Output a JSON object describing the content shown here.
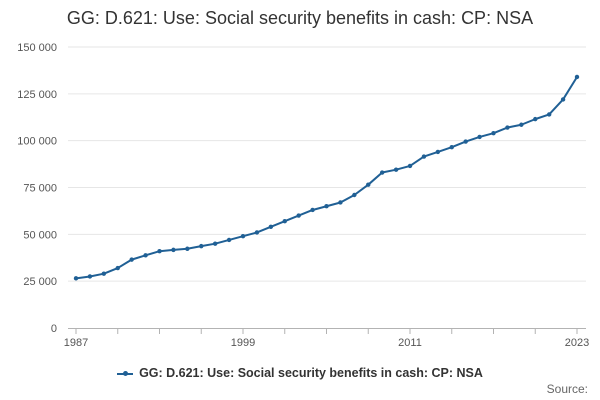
{
  "chart_data": {
    "type": "line",
    "title": "GG: D.621: Use: Social security benefits in cash: CP: NSA",
    "xlabel": "",
    "ylabel": "",
    "x": [
      1987,
      1988,
      1989,
      1990,
      1991,
      1992,
      1993,
      1994,
      1995,
      1996,
      1997,
      1998,
      1999,
      2000,
      2001,
      2002,
      2003,
      2004,
      2005,
      2006,
      2007,
      2008,
      2009,
      2010,
      2011,
      2012,
      2013,
      2014,
      2015,
      2016,
      2017,
      2018,
      2019,
      2020,
      2021,
      2022,
      2023
    ],
    "series": [
      {
        "name": "GG: D.621: Use: Social security benefits in cash: CP: NSA",
        "values": [
          26500,
          27500,
          29000,
          32000,
          36500,
          38800,
          41000,
          41700,
          42300,
          43700,
          45000,
          47000,
          49000,
          51000,
          54000,
          57000,
          60000,
          63000,
          65000,
          67000,
          71000,
          76500,
          83000,
          84500,
          86500,
          91500,
          94000,
          96500,
          99500,
          102000,
          104000,
          107000,
          108500,
          111500,
          114000,
          122000,
          134000
        ]
      }
    ],
    "xticks": [
      "1987",
      "1999",
      "2011",
      "2023"
    ],
    "yticks": [
      "0",
      "25 000",
      "50 000",
      "75 000",
      "100 000",
      "125 000",
      "150 000"
    ],
    "ylim": [
      0,
      150000
    ],
    "xlim": [
      1987,
      2023
    ],
    "grid": true,
    "legend_position": "bottom",
    "color": "#206095"
  },
  "source_label": "Source:"
}
